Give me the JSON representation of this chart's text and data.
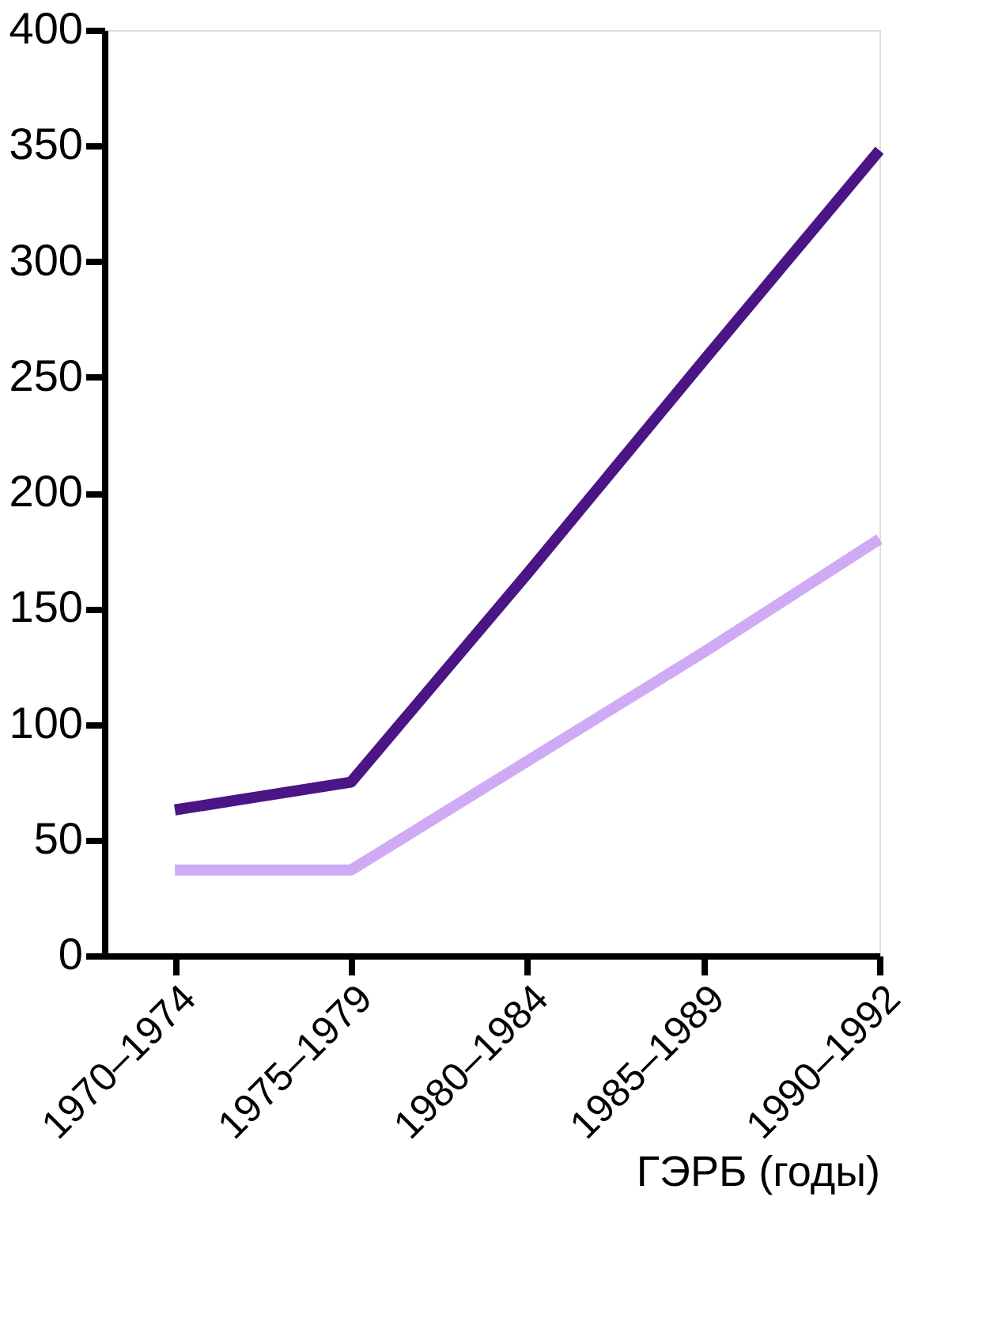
{
  "chart_data": {
    "type": "line",
    "xlabel": "ГЭРБ (годы)",
    "categories": [
      "1970–1974",
      "1975–1979",
      "1980–1984",
      "1985–1989",
      "1990–1992"
    ],
    "series": [
      {
        "color": "#4b1585",
        "values": [
          63,
          75,
          165,
          257,
          348
        ]
      },
      {
        "color": "#cfaaf5",
        "values": [
          37,
          37,
          84,
          131,
          180
        ]
      }
    ],
    "ylim": [
      0,
      400
    ],
    "yticks": [
      0,
      50,
      100,
      150,
      200,
      250,
      300,
      350,
      400
    ],
    "grid": false,
    "legend": false,
    "marker": "none",
    "line_style": "solid"
  }
}
